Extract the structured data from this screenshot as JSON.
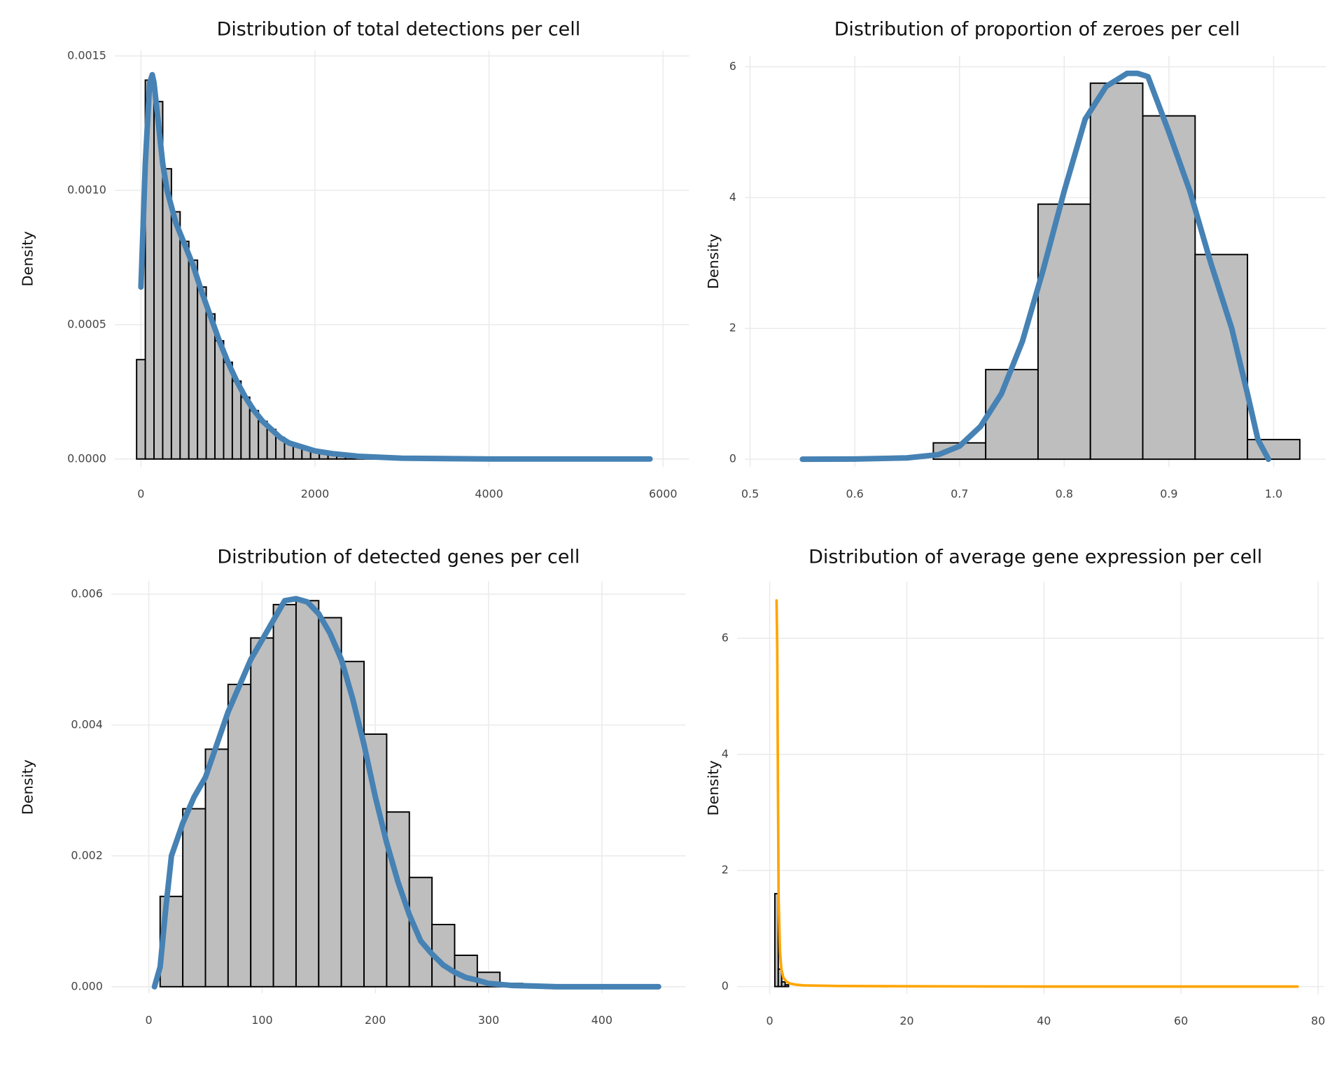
{
  "chart_data": [
    {
      "type": "histogram",
      "title": "Distribution of total detections per cell",
      "y_label": "Density",
      "bins": [
        -50,
        50,
        150,
        250,
        350,
        450,
        550,
        650,
        750,
        850,
        950,
        1050,
        1150,
        1250,
        1350,
        1450,
        1550,
        1650,
        1750,
        1850,
        1950,
        2050,
        2150,
        2250,
        2350,
        2450,
        2550,
        2650,
        2750,
        2850,
        2950,
        3050,
        3150,
        3250,
        3350,
        3450,
        3550,
        3650,
        3750,
        3850,
        3950,
        4050,
        4150,
        4250,
        4350,
        4450,
        4550,
        4650,
        4750,
        4850,
        4950,
        5050,
        5150,
        5250,
        5350,
        5450,
        5550,
        5650,
        5750,
        5850,
        5950
      ],
      "values": [
        0.00037,
        0.00141,
        0.00133,
        0.00108,
        0.00092,
        0.00081,
        0.00074,
        0.00064,
        0.00054,
        0.00044,
        0.00036,
        0.00029,
        0.00023,
        0.00018,
        0.00014,
        0.00011,
        8e-05,
        6e-05,
        5e-05,
        4e-05,
        3e-05,
        2e-05,
        1.5e-05,
        1e-05,
        7e-06,
        5e-06,
        4e-06,
        3e-06,
        2e-06,
        2e-06,
        0,
        0,
        0,
        0,
        0,
        0,
        0,
        0,
        0,
        0,
        0,
        0,
        0,
        0,
        0,
        0,
        0,
        0,
        0,
        0,
        0,
        0,
        0,
        0,
        0,
        0,
        0,
        0,
        0,
        0
      ],
      "color": "#bebebe",
      "edgecolor": "#000000",
      "series": [
        {
          "color": "#4682b4",
          "x": [
            0,
            50,
            100,
            130,
            150,
            200,
            250,
            300,
            400,
            500,
            600,
            700,
            800,
            900,
            1000,
            1100,
            1200,
            1300,
            1400,
            1500,
            1600,
            1700,
            1800,
            2000,
            2200,
            2500,
            3000,
            4000,
            5000,
            5850
          ],
          "values": [
            0.00064,
            0.0011,
            0.0014,
            0.00143,
            0.0014,
            0.00125,
            0.0011,
            0.001,
            0.00088,
            0.0008,
            0.00072,
            0.00062,
            0.00053,
            0.00044,
            0.00036,
            0.00029,
            0.00023,
            0.00018,
            0.00014,
            0.00011,
            8e-05,
            6e-05,
            5e-05,
            3e-05,
            2e-05,
            1e-05,
            3e-06,
            0,
            0,
            0
          ]
        }
      ],
      "xlim": [
        -300,
        6300
      ],
      "xticks": [
        0,
        2000,
        4000,
        6000
      ],
      "ylim": [
        -3e-05,
        0.00152
      ],
      "yticks": [
        {
          "value": 0,
          "label": "0.0000"
        },
        {
          "value": 0.0005,
          "label": "0.0005"
        },
        {
          "value": 0.001,
          "label": "0.0010"
        },
        {
          "value": 0.0015,
          "label": "0.0015"
        }
      ],
      "grid": true
    },
    {
      "type": "histogram",
      "title": "Distribution of proportion of zeroes per cell",
      "y_label": "Density",
      "bins": [
        0.525,
        0.575,
        0.625,
        0.675,
        0.725,
        0.775,
        0.825,
        0.875,
        0.925,
        0.975,
        1.025
      ],
      "values": [
        0,
        0,
        0,
        0.25,
        1.37,
        3.9,
        5.75,
        5.25,
        3.13,
        0.3
      ],
      "color": "#bebebe",
      "edgecolor": "#000000",
      "series": [
        {
          "color": "#4682b4",
          "x": [
            0.55,
            0.6,
            0.65,
            0.68,
            0.7,
            0.72,
            0.74,
            0.76,
            0.78,
            0.8,
            0.82,
            0.84,
            0.86,
            0.87,
            0.88,
            0.9,
            0.92,
            0.94,
            0.96,
            0.975,
            0.985,
            0.995
          ],
          "values": [
            0,
            0.003,
            0.02,
            0.07,
            0.2,
            0.5,
            1.0,
            1.8,
            2.9,
            4.1,
            5.2,
            5.7,
            5.9,
            5.9,
            5.85,
            5.0,
            4.1,
            3.0,
            2.0,
            1.0,
            0.3,
            0
          ]
        }
      ],
      "xlim": [
        0.495,
        1.05
      ],
      "xticks": [
        0.5,
        0.6,
        0.7,
        0.8,
        0.9,
        {
          "value": 1,
          "label": "1.0"
        }
      ],
      "ylim": [
        -0.12,
        6.17
      ],
      "yticks": [
        0,
        2,
        4,
        6
      ],
      "grid": true
    },
    {
      "type": "histogram",
      "title": "Distribution of detected genes per cell",
      "y_label": "Density",
      "bins": [
        -10,
        10,
        30,
        50,
        70,
        90,
        110,
        130,
        150,
        170,
        190,
        210,
        230,
        250,
        270,
        290,
        310,
        330,
        350,
        370,
        390,
        410,
        430,
        450
      ],
      "values": [
        0,
        0.00138,
        0.00272,
        0.00363,
        0.00462,
        0.00533,
        0.00584,
        0.0059,
        0.00564,
        0.00497,
        0.00386,
        0.00267,
        0.00167,
        0.00095,
        0.00048,
        0.00022,
        5e-05,
        1e-05,
        0,
        0,
        0,
        0,
        0
      ],
      "color": "#bebebe",
      "edgecolor": "#000000",
      "series": [
        {
          "color": "#4682b4",
          "x": [
            5,
            10,
            15,
            20,
            30,
            40,
            50,
            60,
            70,
            80,
            90,
            100,
            110,
            120,
            130,
            140,
            150,
            160,
            170,
            180,
            190,
            200,
            210,
            220,
            230,
            240,
            250,
            260,
            270,
            280,
            290,
            300,
            320,
            340,
            360,
            400,
            450
          ],
          "values": [
            0,
            0.0003,
            0.0012,
            0.002,
            0.0025,
            0.0029,
            0.0032,
            0.0037,
            0.0042,
            0.0046,
            0.005,
            0.0053,
            0.0056,
            0.0059,
            0.00593,
            0.00588,
            0.0057,
            0.0054,
            0.005,
            0.0044,
            0.0037,
            0.0029,
            0.0022,
            0.0016,
            0.0011,
            0.0007,
            0.0005,
            0.00033,
            0.00022,
            0.00014,
            0.0001,
            5e-05,
            2e-05,
            1e-05,
            0,
            0,
            0
          ]
        }
      ],
      "xlim": [
        -33,
        474
      ],
      "xticks": [
        0,
        100,
        200,
        300,
        400
      ],
      "ylim": [
        -0.0001,
        0.0062
      ],
      "yticks": [
        {
          "value": 0,
          "label": "0.000"
        },
        {
          "value": 0.002,
          "label": "0.002"
        },
        {
          "value": 0.004,
          "label": "0.004"
        },
        {
          "value": 0.006,
          "label": "0.006"
        }
      ],
      "grid": true
    },
    {
      "type": "histogram",
      "title": "Distribution of average gene expression per cell",
      "y_label": "Density",
      "bins": [
        0.75,
        1.25,
        1.75,
        2.25,
        2.75
      ],
      "values": [
        1.6,
        0.3,
        0.08,
        0.03
      ],
      "color": "#bebebe",
      "edgecolor": "#000000",
      "series": [
        {
          "color": "#ffa500",
          "x": [
            1,
            1.1,
            1.2,
            1.3,
            1.5,
            1.7,
            2,
            2.5,
            3,
            4,
            5,
            10,
            20,
            40,
            60,
            77
          ],
          "values": [
            6.65,
            5.8,
            3.5,
            1.5,
            0.6,
            0.3,
            0.15,
            0.08,
            0.05,
            0.03,
            0.02,
            0.01,
            0.005,
            0,
            0,
            0
          ]
        }
      ],
      "xlim": [
        -4.75,
        80.9
      ],
      "xticks": [
        0,
        20,
        40,
        60,
        80
      ],
      "ylim": [
        -0.13,
        6.97
      ],
      "yticks": [
        0,
        2,
        4,
        6
      ],
      "grid": true
    }
  ]
}
